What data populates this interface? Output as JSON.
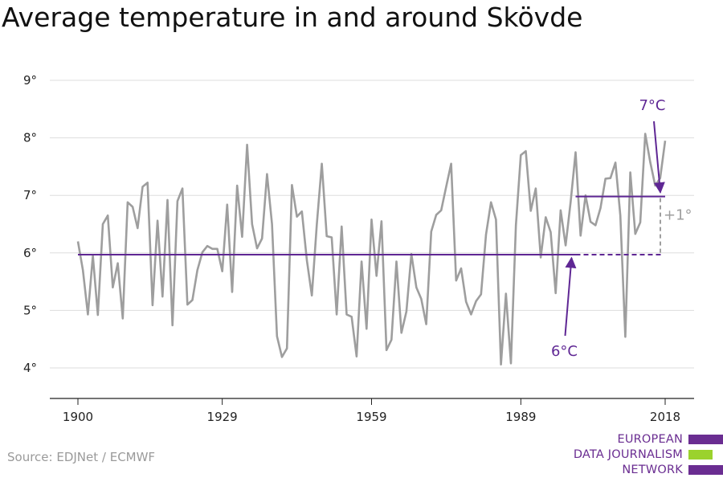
{
  "chart_data": {
    "type": "line",
    "title": "Average temperature in and around Skövde",
    "x_tick_labels": [
      "1900",
      "1929",
      "1959",
      "1989",
      "2018"
    ],
    "y_tick_labels": [
      "4°",
      "5°",
      "6°",
      "7°",
      "8°",
      "9°"
    ],
    "xlim": [
      1900,
      2018
    ],
    "ylim": [
      3.5,
      9.2
    ],
    "grid": "horizontal",
    "series": [
      {
        "x": [
          1900,
          1901,
          1902,
          1903,
          1904,
          1905,
          1906,
          1907,
          1908,
          1909,
          1910,
          1911,
          1912,
          1913,
          1914,
          1915,
          1916,
          1917,
          1918,
          1919,
          1920,
          1921,
          1922,
          1923,
          1924,
          1925,
          1926,
          1927,
          1928,
          1929,
          1930,
          1931,
          1932,
          1933,
          1934,
          1935,
          1936,
          1937,
          1938,
          1939,
          1940,
          1941,
          1942,
          1943,
          1944,
          1945,
          1946,
          1947,
          1948,
          1949,
          1950,
          1951,
          1952,
          1953,
          1954,
          1955,
          1956,
          1957,
          1958,
          1959,
          1960,
          1961,
          1962,
          1963,
          1964,
          1965,
          1966,
          1967,
          1968,
          1969,
          1970,
          1971,
          1972,
          1973,
          1974,
          1975,
          1976,
          1977,
          1978,
          1979,
          1980,
          1981,
          1982,
          1983,
          1984,
          1985,
          1986,
          1987,
          1988,
          1989,
          1990,
          1991,
          1992,
          1993,
          1994,
          1995,
          1996,
          1997,
          1998,
          1999,
          2000,
          2001,
          2002,
          2003,
          2004,
          2005,
          2006,
          2007,
          2008,
          2009,
          2010,
          2011,
          2012,
          2013,
          2014,
          2015,
          2016,
          2017,
          2018
        ],
        "values": [
          6.2,
          5.7,
          4.93,
          5.95,
          4.92,
          6.5,
          6.65,
          5.4,
          5.82,
          4.86,
          6.88,
          6.8,
          6.43,
          7.15,
          7.22,
          5.09,
          6.56,
          5.24,
          6.92,
          4.74,
          6.9,
          7.12,
          5.1,
          5.18,
          5.7,
          6.01,
          6.12,
          6.07,
          6.07,
          5.68,
          6.84,
          5.32,
          7.17,
          6.28,
          7.88,
          6.5,
          6.08,
          6.25,
          7.37,
          6.5,
          4.55,
          4.19,
          4.34,
          7.18,
          6.63,
          6.72,
          5.87,
          5.26,
          6.5,
          7.55,
          6.29,
          6.27,
          4.93,
          6.46,
          4.93,
          4.89,
          4.2,
          5.85,
          4.68,
          6.58,
          5.6,
          6.55,
          4.31,
          4.49,
          5.85,
          4.61,
          4.98,
          5.98,
          5.4,
          5.2,
          4.76,
          6.37,
          6.66,
          6.74,
          7.15,
          7.55,
          5.52,
          5.73,
          5.15,
          4.93,
          5.16,
          5.28,
          6.32,
          6.88,
          6.58,
          4.06,
          5.29,
          4.08,
          6.48,
          7.7,
          7.77,
          6.73,
          7.12,
          5.92,
          6.62,
          6.36,
          5.3,
          6.74,
          6.13,
          6.88,
          7.75,
          6.3,
          7.0,
          6.54,
          6.48,
          6.78,
          7.29,
          7.3,
          7.57,
          6.65,
          4.54,
          7.4,
          6.33,
          6.53,
          8.07,
          7.58,
          7.17,
          7.3,
          7.95
        ]
      }
    ],
    "annotations": {
      "baseline_label": "6°C",
      "baseline_value": 5.97,
      "baseline_from": 1900,
      "baseline_to": 2000,
      "recent_label": "7°C",
      "recent_value": 6.98,
      "recent_from": 2000,
      "recent_to": 2018,
      "difference_label": "+1°"
    }
  },
  "source": "Source: EDJNet / ECMWF",
  "logo": {
    "lines": [
      "EUROPEAN",
      "DATA JOURNALISM",
      "NETWORK"
    ],
    "colors": {
      "purple": "#6a2d91",
      "green": "#9bd22d"
    }
  },
  "colors": {
    "series": "#9e9e9e",
    "average_line": "#5f2794",
    "difference": "#9e9e9e",
    "grid": "#dddddd"
  }
}
